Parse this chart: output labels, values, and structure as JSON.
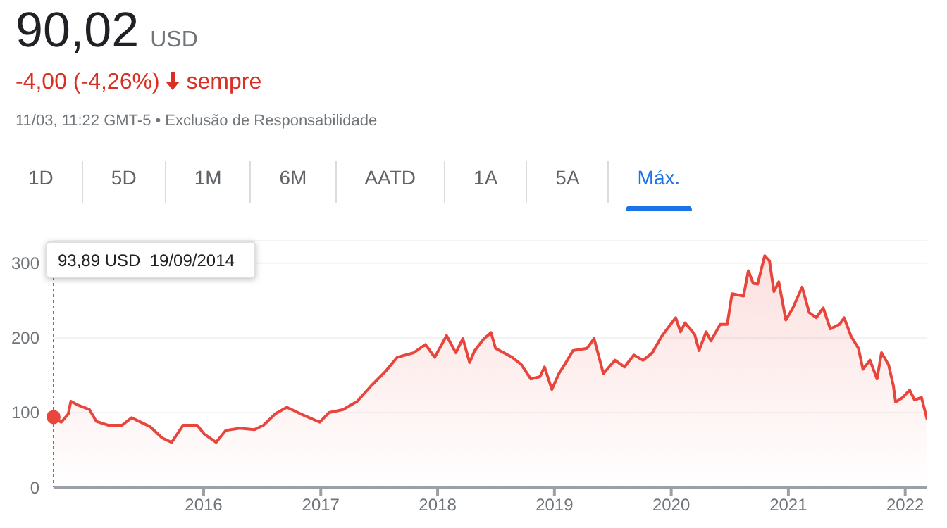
{
  "chart_data": {
    "type": "area",
    "title": "90,02",
    "subtitle": "USD",
    "annotations": [
      "-4,00 (-4,26%)",
      "sempre",
      "11/03, 11:22 GMT-5 • Exclusão de Responsabilidade",
      "1D",
      "5D",
      "1M",
      "6M",
      "AATD",
      "1A",
      "5A",
      "Máx.",
      "93,89 USD  19/09/2014"
    ],
    "x": [
      "2014-09-19",
      "2014-10-13",
      "2014-11-04",
      "2014-11-12",
      "2014-12-04",
      "2015-01-09",
      "2015-01-31",
      "2015-03-08",
      "2015-04-21",
      "2015-05-21",
      "2015-07-18",
      "2015-08-24",
      "2015-09-23",
      "2015-10-29",
      "2015-12-12",
      "2016-01-03",
      "2016-02-09",
      "2016-03-10",
      "2016-04-23",
      "2016-06-07",
      "2016-07-06",
      "2016-08-11",
      "2016-09-17",
      "2016-10-31",
      "2016-12-29",
      "2017-01-27",
      "2017-03-12",
      "2017-04-25",
      "2017-06-08",
      "2017-07-22",
      "2017-08-28",
      "2017-10-18",
      "2017-11-24",
      "2017-12-23",
      "2018-01-29",
      "2018-02-27",
      "2018-03-21",
      "2018-04-11",
      "2018-04-27",
      "2018-05-26",
      "2018-06-17",
      "2018-07-01",
      "2018-08-22",
      "2018-09-20",
      "2018-10-19",
      "2018-11-17",
      "2018-12-01",
      "2018-12-24",
      "2019-01-15",
      "2019-02-06",
      "2019-02-28",
      "2019-04-13",
      "2019-05-05",
      "2019-06-03",
      "2019-07-09",
      "2019-08-08",
      "2019-09-06",
      "2019-10-05",
      "2019-11-03",
      "2019-12-02",
      "2020-01-15",
      "2020-01-30",
      "2020-02-13",
      "2020-03-14",
      "2020-03-28",
      "2020-04-19",
      "2020-05-04",
      "2020-06-02",
      "2020-06-24",
      "2020-07-09",
      "2020-08-14",
      "2020-08-29",
      "2020-09-13",
      "2020-09-27",
      "2020-10-19",
      "2020-11-03",
      "2020-11-17",
      "2020-12-02",
      "2020-12-24",
      "2021-01-15",
      "2021-02-13",
      "2021-03-07",
      "2021-03-29",
      "2021-04-20",
      "2021-05-12",
      "2021-06-10",
      "2021-06-24",
      "2021-07-16",
      "2021-08-08",
      "2021-08-22",
      "2021-09-13",
      "2021-10-05",
      "2021-10-19",
      "2021-11-10",
      "2021-11-25",
      "2021-12-02",
      "2021-12-24",
      "2022-01-15",
      "2022-01-30",
      "2022-02-21",
      "2022-03-11"
    ],
    "series": [
      {
        "color": "#e8453c",
        "values": [
          93.89,
          87,
          98,
          115,
          110,
          104,
          88,
          83,
          83,
          93,
          81,
          66,
          60,
          83,
          83,
          71,
          60,
          76,
          79,
          77,
          83,
          98,
          107,
          98,
          87,
          100,
          104,
          115,
          136,
          155,
          174,
          180,
          191,
          174,
          203,
          180,
          199,
          167,
          183,
          199,
          207,
          186,
          174,
          164,
          145,
          148,
          161,
          131,
          152,
          167,
          183,
          186,
          199,
          152,
          170,
          161,
          177,
          170,
          180,
          202,
          227,
          208,
          220,
          205,
          183,
          208,
          196,
          218,
          218,
          259,
          256,
          290,
          273,
          272,
          310,
          303,
          262,
          275,
          224,
          240,
          268,
          234,
          227,
          240,
          212,
          218,
          227,
          202,
          186,
          158,
          170,
          145,
          180,
          164,
          136,
          114,
          120,
          130,
          117,
          120,
          90.02
        ]
      }
    ],
    "xlim": [
      "2014-09-19",
      "2022-03-11"
    ],
    "xticks": [
      "2016",
      "2017",
      "2018",
      "2019",
      "2020",
      "2021",
      "2022"
    ],
    "ylim": [
      0,
      330
    ],
    "yticks": [
      0,
      100,
      200,
      300
    ],
    "grid": "y",
    "legend": false,
    "marker": "none",
    "line_style": "solid"
  }
}
